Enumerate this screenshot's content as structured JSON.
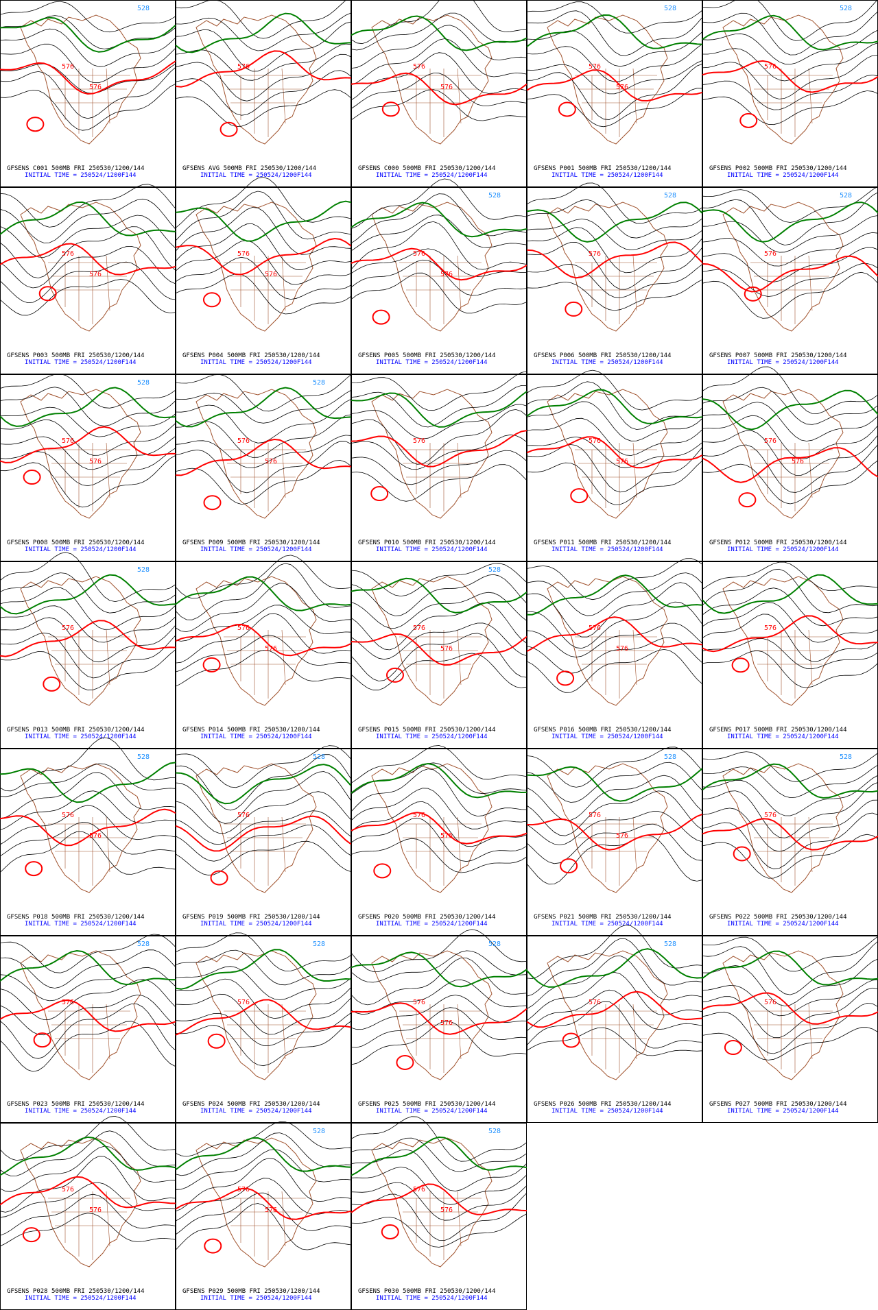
{
  "panels": [
    {
      "title": "GFSENS C001 500MB FRI 250530/1200/144",
      "initial_time": "INITIAL TIME = 250524/1200F144",
      "contour_labels": [
        "576",
        "576",
        "528"
      ]
    },
    {
      "title": "GFSENS AVG 500MB FRI 250530/1200/144",
      "initial_time": "INITIAL TIME = 250524/1200F144",
      "contour_labels": [
        "576"
      ]
    },
    {
      "title": "GFSENS C000 500MB FRI 250530/1200/144",
      "initial_time": "INITIAL TIME = 250524/1200F144",
      "contour_labels": [
        "576",
        "576"
      ]
    },
    {
      "title": "GFSENS P001 500MB FRI 250530/1200/144",
      "initial_time": "INITIAL TIME = 250524/1200F144",
      "contour_labels": [
        "576",
        "576",
        "528"
      ]
    },
    {
      "title": "GFSENS P002 500MB FRI 250530/1200/144",
      "initial_time": "INITIAL TIME = 250524/1200F144",
      "contour_labels": [
        "576",
        "528"
      ]
    },
    {
      "title": "GFSENS P003 500MB FRI 250530/1200/144",
      "initial_time": "INITIAL TIME = 250524/1200F144",
      "contour_labels": [
        "576",
        "576"
      ]
    },
    {
      "title": "GFSENS P004 500MB FRI 250530/1200/144",
      "initial_time": "INITIAL TIME = 250524/1200F144",
      "contour_labels": [
        "576",
        "576"
      ]
    },
    {
      "title": "GFSENS P005 500MB FRI 250530/1200/144",
      "initial_time": "INITIAL TIME = 250524/1200F144",
      "contour_labels": [
        "576",
        "576",
        "528"
      ]
    },
    {
      "title": "GFSENS P006 500MB FRI 250530/1200/144",
      "initial_time": "INITIAL TIME = 250524/1200F144",
      "contour_labels": [
        "576",
        "528"
      ]
    },
    {
      "title": "GFSENS P007 500MB FRI 250530/1200/144",
      "initial_time": "INITIAL TIME = 250524/1200F144",
      "contour_labels": [
        "576",
        "528"
      ]
    },
    {
      "title": "GFSENS P008 500MB FRI 250530/1200/144",
      "initial_time": "INITIAL TIME = 250524/1200F144",
      "contour_labels": [
        "576",
        "576",
        "528"
      ]
    },
    {
      "title": "GFSENS P009 500MB FRI 250530/1200/144",
      "initial_time": "INITIAL TIME = 250524/1200F144",
      "contour_labels": [
        "576",
        "576",
        "528"
      ]
    },
    {
      "title": "GFSENS P010 500MB FRI 250530/1200/144",
      "initial_time": "INITIAL TIME = 250524/1200F144",
      "contour_labels": [
        "576"
      ]
    },
    {
      "title": "GFSENS P011 500MB FRI 250530/1200/144",
      "initial_time": "INITIAL TIME = 250524/1200F144",
      "contour_labels": [
        "576",
        "576"
      ]
    },
    {
      "title": "GFSENS P012 500MB FRI 250530/1200/144",
      "initial_time": "INITIAL TIME = 250524/1200F144",
      "contour_labels": [
        "576",
        "576"
      ]
    },
    {
      "title": "GFSENS P013 500MB FRI 250530/1200/144",
      "initial_time": "INITIAL TIME = 250524/1200F144",
      "contour_labels": [
        "576",
        "528"
      ]
    },
    {
      "title": "GFSENS P014 500MB FRI 250530/1200/144",
      "initial_time": "INITIAL TIME = 250524/1200F144",
      "contour_labels": [
        "576",
        "576"
      ]
    },
    {
      "title": "GFSENS P015 500MB FRI 250530/1200/144",
      "initial_time": "INITIAL TIME = 250524/1200F144",
      "contour_labels": [
        "576",
        "576",
        "528"
      ]
    },
    {
      "title": "GFSENS P016 500MB FRI 250530/1200/144",
      "initial_time": "INITIAL TIME = 250524/1200F144",
      "contour_labels": [
        "576",
        "576"
      ]
    },
    {
      "title": "GFSENS P017 500MB FRI 250530/1200/144",
      "initial_time": "INITIAL TIME = 250524/1200F144",
      "contour_labels": [
        "576"
      ]
    },
    {
      "title": "GFSENS P018 500MB FRI 250530/1200/144",
      "initial_time": "INITIAL TIME = 250524/1200F144",
      "contour_labels": [
        "576",
        "576",
        "528"
      ]
    },
    {
      "title": "GFSENS P019 500MB FRI 250530/1200/144",
      "initial_time": "INITIAL TIME = 250524/1200F144",
      "contour_labels": [
        "576",
        "528"
      ]
    },
    {
      "title": "GFSENS P020 500MB FRI 250530/1200/144",
      "initial_time": "INITIAL TIME = 250524/1200F144",
      "contour_labels": [
        "576",
        "576"
      ]
    },
    {
      "title": "GFSENS P021 500MB FRI 250530/1200/144",
      "initial_time": "INITIAL TIME = 250524/1200F144",
      "contour_labels": [
        "576",
        "576",
        "528"
      ]
    },
    {
      "title": "GFSENS P022 500MB FRI 250530/1200/144",
      "initial_time": "INITIAL TIME = 250524/1200F144",
      "contour_labels": [
        "576",
        "528"
      ]
    },
    {
      "title": "GFSENS P023 500MB FRI 250530/1200/144",
      "initial_time": "INITIAL TIME = 250524/1200F144",
      "contour_labels": [
        "576",
        "528"
      ]
    },
    {
      "title": "GFSENS P024 500MB FRI 250530/1200/144",
      "initial_time": "INITIAL TIME = 250524/1200F144",
      "contour_labels": [
        "576",
        "528"
      ]
    },
    {
      "title": "GFSENS P025 500MB FRI 250530/1200/144",
      "initial_time": "INITIAL TIME = 250524/1200F144",
      "contour_labels": [
        "576",
        "576",
        "528"
      ]
    },
    {
      "title": "GFSENS P026 500MB FRI 250530/1200/144",
      "initial_time": "INITIAL TIME = 250524/1200F144",
      "contour_labels": [
        "576",
        "528"
      ]
    },
    {
      "title": "GFSENS P027 500MB FRI 250530/1200/144",
      "initial_time": "INITIAL TIME = 250524/1200F144",
      "contour_labels": [
        "576"
      ]
    },
    {
      "title": "GFSENS P028 500MB FRI 250530/1200/144",
      "initial_time": "INITIAL TIME = 250524/1200F144",
      "contour_labels": [
        "576",
        "576"
      ]
    },
    {
      "title": "GFSENS P029 500MB FRI 250530/1200/144",
      "initial_time": "INITIAL TIME = 250524/1200F144",
      "contour_labels": [
        "576",
        "576",
        "528"
      ]
    },
    {
      "title": "GFSENS P030 500MB FRI 250530/1200/144",
      "initial_time": "INITIAL TIME = 250524/1200F144",
      "contour_labels": [
        "576",
        "576",
        "528"
      ]
    }
  ]
}
